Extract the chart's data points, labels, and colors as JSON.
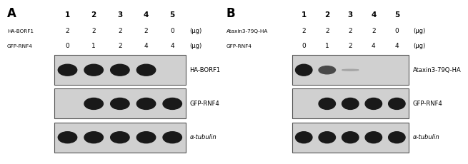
{
  "panel_A_label": "A",
  "panel_B_label": "B",
  "lane_numbers": [
    "1",
    "2",
    "3",
    "4",
    "5"
  ],
  "panel_A": {
    "row1_label": "HA-BORF1",
    "row2_label": "GFP-RNF4",
    "row1_values": [
      "2",
      "2",
      "2",
      "2",
      "0"
    ],
    "row2_values": [
      "0",
      "1",
      "2",
      "4",
      "4"
    ],
    "unit": "(μg)",
    "blot1_label": "HA-BORF1",
    "blot2_label": "GFP-RNF4",
    "blot3_label": "α-tubulin",
    "blot1_bands": [
      1.0,
      1.0,
      1.0,
      1.0,
      0.0
    ],
    "blot2_bands": [
      0.0,
      1.0,
      1.0,
      1.0,
      1.0
    ],
    "blot3_bands": [
      1.0,
      1.0,
      1.0,
      1.0,
      1.0
    ]
  },
  "panel_B": {
    "row1_label": "Ataxin3-79Q-HA",
    "row2_label": "GFP-RNF4",
    "row1_values": [
      "2",
      "2",
      "2",
      "2",
      "0"
    ],
    "row2_values": [
      "0",
      "1",
      "2",
      "4",
      "4"
    ],
    "unit": "(μg)",
    "blot1_label": "Ataxin3-79Q-HA",
    "blot2_label": "GFP-RNF4",
    "blot3_label": "α-tubulin",
    "blot1_bands": [
      1.0,
      0.7,
      0.12,
      0.0,
      0.0
    ],
    "blot2_bands": [
      0.0,
      1.0,
      1.0,
      1.0,
      1.0
    ],
    "blot3_bands": [
      1.0,
      1.0,
      1.0,
      1.0,
      1.0
    ]
  },
  "bg_color": "#d0d0d0",
  "box_edge_color": "#555555",
  "band_base_color": [
    30,
    30,
    30
  ]
}
